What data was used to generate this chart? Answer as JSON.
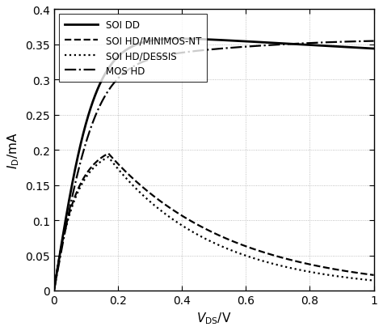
{
  "title": "",
  "xlabel": "V_{DS}/V",
  "ylabel": "I_D/mA",
  "xlim": [
    0,
    1.0
  ],
  "ylim": [
    0,
    0.4
  ],
  "xticks": [
    0,
    0.2,
    0.4,
    0.6,
    0.8,
    1.0
  ],
  "yticks": [
    0,
    0.05,
    0.1,
    0.15,
    0.2,
    0.25,
    0.3,
    0.35,
    0.4
  ],
  "legend": [
    {
      "label": "SOI DD",
      "linestyle": "solid",
      "linewidth": 2.0
    },
    {
      "label": "SOI HD/MINIMOS-NT",
      "linestyle": "dashed",
      "linewidth": 1.6
    },
    {
      "label": "SOI HD/DESSIS",
      "linestyle": "dotted",
      "linewidth": 1.6
    },
    {
      "label": "MOS HD",
      "linestyle": "dashdot",
      "linewidth": 1.6
    }
  ],
  "color": "black",
  "grid_color": "#b0b0b0",
  "background_color": "#ffffff",
  "figsize": [
    4.74,
    4.1
  ],
  "dpi": 100
}
